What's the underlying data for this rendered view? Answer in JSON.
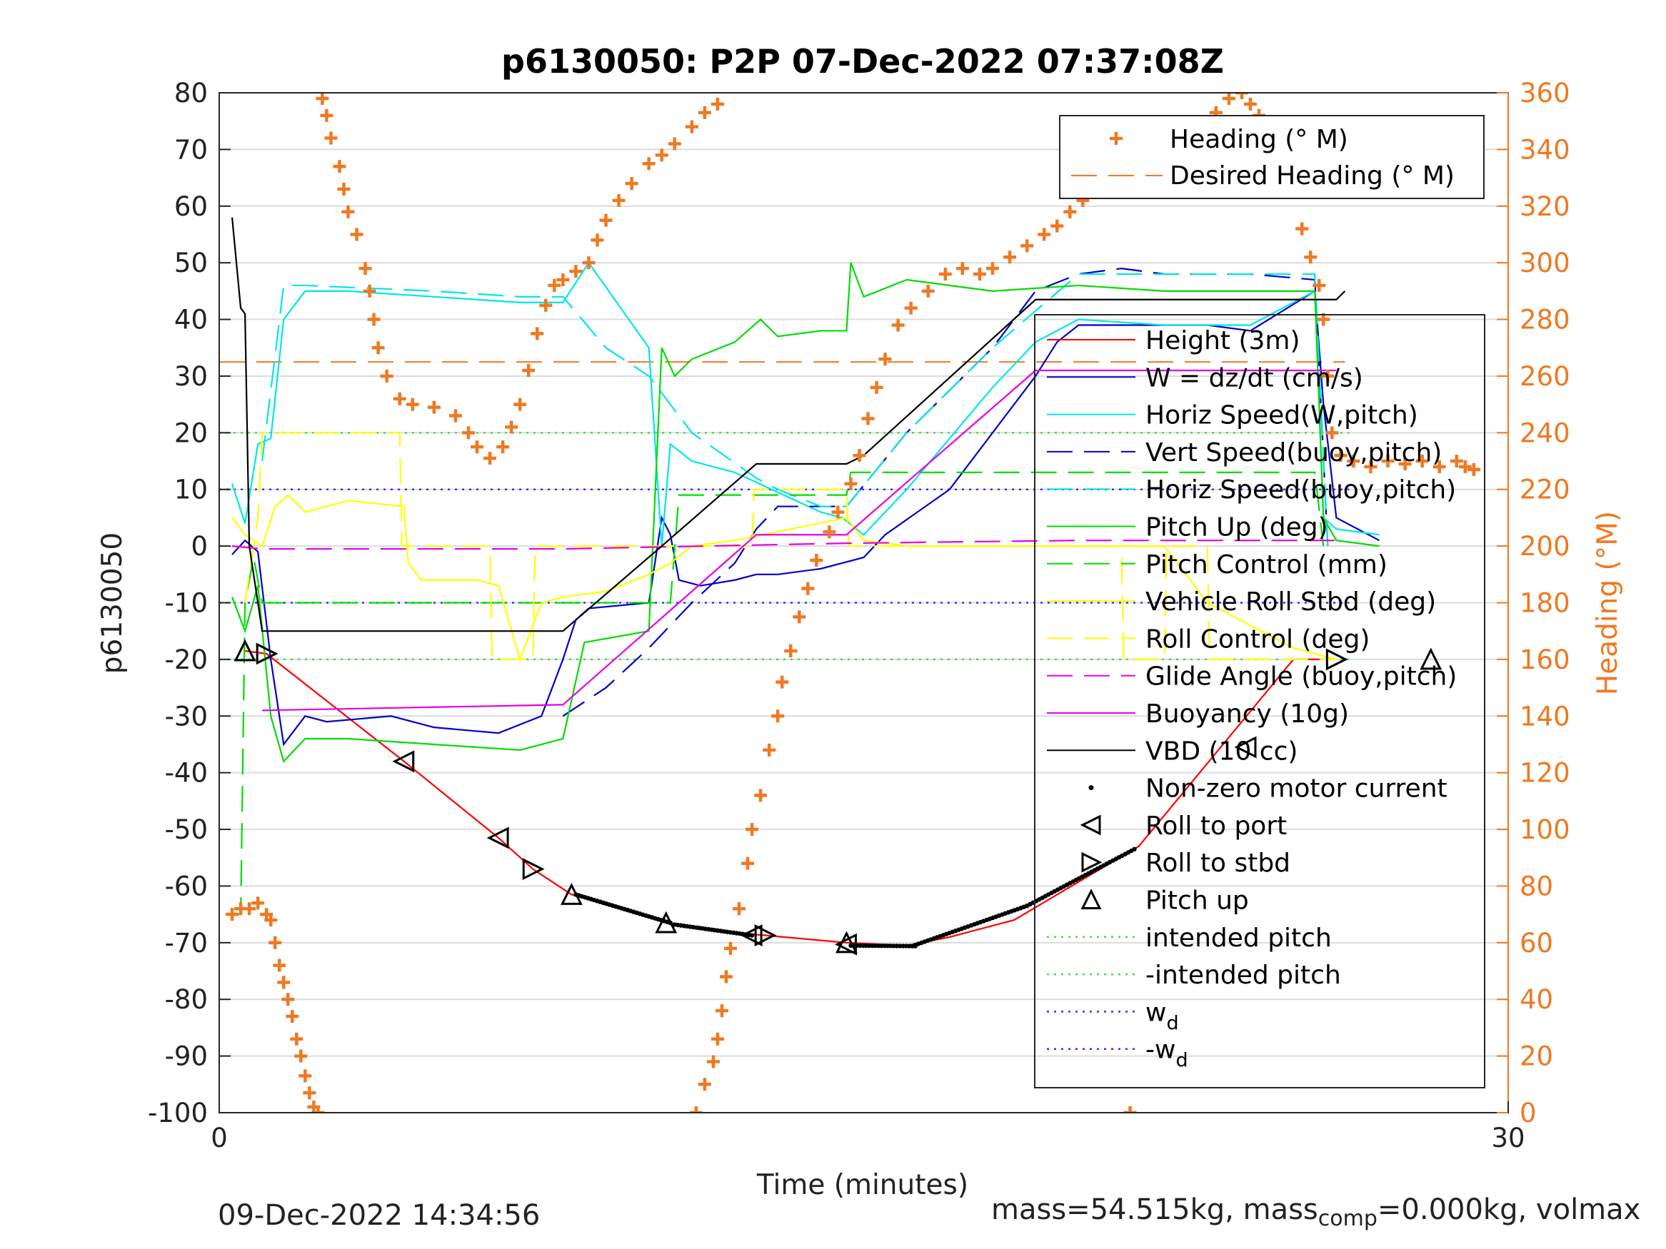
{
  "chart_data": {
    "type": "line",
    "title": "p6130050: P2P 07-Dec-2022 07:37:08Z",
    "xlabel": "Time (minutes)",
    "ylabel": "p6130050",
    "y2label": "Heading (°M)",
    "xlim": [
      0,
      30
    ],
    "ylim": [
      -100,
      80
    ],
    "y2lim": [
      0,
      360
    ],
    "xticks": [
      "0",
      "30"
    ],
    "yticks": [
      "80",
      "70",
      "60",
      "50",
      "40",
      "30",
      "20",
      "10",
      "0",
      "-10",
      "-20",
      "-30",
      "-40",
      "-50",
      "-60",
      "-70",
      "-80",
      "-90",
      "-100"
    ],
    "y2ticks": [
      "360",
      "340",
      "320",
      "300",
      "280",
      "260",
      "240",
      "220",
      "200",
      "180",
      "160",
      "140",
      "120",
      "100",
      "80",
      "60",
      "40",
      "20",
      "0"
    ],
    "grid": true,
    "colors": {
      "height": "#ff0000",
      "w": "#0000c8",
      "horiz_speed": "#00e6e6",
      "pitch": "#00dd00",
      "roll": "#ffff00",
      "glide": "#e600e6",
      "buoyancy": "#e600e6",
      "vbd": "#000000",
      "heading": "#f07820",
      "intended": "#44dd44",
      "wd": "#3333ff"
    },
    "series": [
      {
        "name": "Height (3m)",
        "style": "solid",
        "color": "#ff0000",
        "x": [
          0.6,
          1.1,
          4.3,
          6.5,
          7.3,
          8.2,
          10.4,
          12.4,
          12.7,
          14.6,
          16.0,
          17.0,
          18.5,
          21.4,
          25.0,
          26.0
        ],
        "y": [
          -18.5,
          -19,
          -38,
          -51.5,
          -57,
          -61.5,
          -66.5,
          -68.5,
          -68.7,
          -70,
          -70.5,
          -69,
          -66,
          -53,
          -20,
          -20
        ]
      },
      {
        "name": "W = dz/dt (cm/s)",
        "style": "solid",
        "color": "#0000c8",
        "x": [
          0.3,
          0.6,
          0.9,
          1.2,
          1.5,
          2.0,
          2.5,
          4.0,
          5.0,
          6.5,
          7.5,
          8.0,
          8.3,
          8.6,
          10.0,
          10.3,
          10.5,
          10.7,
          11.2,
          12.0,
          12.5,
          13.0,
          14.0,
          14.5,
          15.0,
          15.5,
          17.0,
          18.0,
          19.0,
          19.5,
          20.0,
          21.0,
          22.0,
          23.0,
          24.0,
          25.5,
          25.7,
          26.0,
          27.0
        ],
        "y": [
          -1.5,
          1,
          -1,
          -20,
          -35,
          -30,
          -31,
          -30,
          -32,
          -33,
          -30,
          -20,
          -13,
          -11,
          -10,
          5,
          2,
          -6,
          -7,
          -6,
          -5,
          -5,
          -4,
          -3,
          -2,
          2,
          10,
          20,
          30,
          36,
          39,
          39,
          39,
          39,
          38,
          45,
          25,
          5,
          1
        ]
      },
      {
        "name": "Horiz Speed(W,pitch)",
        "style": "solid",
        "color": "#00e6e6",
        "x": [
          0.3,
          0.6,
          0.9,
          1.2,
          1.5,
          2.0,
          3.0,
          5.0,
          7.0,
          8.0,
          8.6,
          10.0,
          10.3,
          10.5,
          11.0,
          12.0,
          14.0,
          14.5,
          15.0,
          16.0,
          18.0,
          19.0,
          20.0,
          22.0,
          24.0,
          25.5,
          25.7,
          26.0,
          27.0
        ],
        "y": [
          11,
          4,
          18,
          19,
          40,
          45,
          45,
          44,
          43,
          43,
          50,
          35,
          0,
          18,
          15,
          13,
          6,
          5,
          2,
          10,
          28,
          36,
          40,
          39,
          39,
          45,
          5,
          3,
          2
        ]
      },
      {
        "name": "Vert Speed(buoy,pitch)",
        "style": "dash",
        "color": "#0000c8",
        "x": [
          8.0,
          9.0,
          10.0,
          11.0,
          12.0,
          12.5,
          13.0,
          14.0,
          14.6,
          16.0,
          18.0,
          19.0,
          20.0,
          21.0,
          22.0,
          24.0,
          25.5,
          25.8
        ],
        "y": [
          -30,
          -25,
          -18,
          -10,
          -3,
          3,
          7,
          7,
          7,
          20,
          35,
          45,
          48,
          49,
          48,
          48,
          47,
          0
        ]
      },
      {
        "name": "Horiz Speed(buoy,pitch)",
        "style": "dash",
        "color": "#00e6e6",
        "x": [
          1.0,
          1.5,
          2.0,
          5.0,
          7.0,
          8.0,
          9.0,
          10.0,
          11.0,
          12.5,
          13.0,
          14.0,
          14.6,
          16.0,
          18.0,
          20.0,
          22.0,
          24.0,
          25.5,
          25.8
        ],
        "y": [
          15,
          46,
          46,
          45,
          44,
          44,
          35,
          30,
          20,
          12,
          10,
          7,
          7,
          20,
          35,
          48,
          48,
          48,
          48,
          0
        ]
      },
      {
        "name": "Pitch Up (deg)",
        "style": "solid",
        "color": "#00dd00",
        "x": [
          0.3,
          0.6,
          0.9,
          1.2,
          1.5,
          2.0,
          3.0,
          5.0,
          7.0,
          8.0,
          8.5,
          10.0,
          10.3,
          10.6,
          11.0,
          12.0,
          12.6,
          13.0,
          14.0,
          14.6,
          14.7,
          15.0,
          16.0,
          18.0,
          20.0,
          22.0,
          24.0,
          25.5,
          25.7,
          26.0,
          27.0
        ],
        "y": [
          -9,
          -15,
          -7,
          -30,
          -38,
          -34,
          -34,
          -35,
          -36,
          -34,
          -17,
          -15,
          35,
          30,
          33,
          36,
          40,
          37,
          38,
          38,
          50,
          44,
          47,
          45,
          46,
          45,
          45,
          45,
          5,
          1,
          0
        ]
      },
      {
        "name": "Pitch Control (mm)",
        "style": "dash",
        "color": "#00dd00",
        "x": [
          0.3,
          0.5,
          0.6,
          0.8,
          1.0,
          1.5,
          8.0,
          10.5,
          10.7,
          14.0,
          14.6,
          14.7,
          25.5,
          25.7
        ],
        "y": [
          -65,
          -65,
          -10,
          -2,
          -10,
          -10,
          -10,
          -10,
          9,
          9,
          9,
          13,
          13,
          0
        ]
      },
      {
        "name": "Vehicle Roll Stbd (deg)",
        "style": "solid",
        "color": "#ffff00",
        "x": [
          0.3,
          0.6,
          1.0,
          1.3,
          1.6,
          2.0,
          3.0,
          4.3,
          4.4,
          4.7,
          5.0,
          6.0,
          6.5,
          7.0,
          7.5,
          8.0,
          9.0,
          10.0,
          10.5,
          11.0,
          12.0,
          14.6,
          15.0,
          16.0,
          20.0,
          22.0,
          23.0,
          25.0,
          26.0
        ],
        "y": [
          5,
          2,
          0,
          7,
          9,
          6,
          8,
          7,
          -3,
          -6,
          -6,
          -6,
          -7,
          -20,
          -10,
          -9,
          -8,
          -5,
          -3,
          0,
          1,
          5,
          1,
          0,
          0,
          0,
          -10,
          -18,
          -20
        ]
      },
      {
        "name": "Roll Control (deg)",
        "style": "dash",
        "color": "#ffff00",
        "x": [
          0.6,
          0.9,
          1.0,
          4.2,
          4.25,
          6.3,
          6.35,
          7.3,
          7.35,
          12.4,
          12.45,
          14.6,
          14.65,
          21.0,
          21.05,
          22.0,
          22.05,
          23.0,
          23.05,
          26.0
        ],
        "y": [
          -10,
          5,
          20,
          20,
          0,
          0,
          -20,
          -20,
          0,
          0,
          10,
          10,
          0,
          0,
          -20,
          -20,
          0,
          0,
          -20,
          -20
        ]
      },
      {
        "name": "Glide Angle (buoy,pitch)",
        "style": "dash",
        "color": "#e600e6",
        "x": [
          0.3,
          1.0,
          8.0,
          14.6,
          20.0,
          26.0
        ],
        "y": [
          0,
          -0.5,
          -0.5,
          0.5,
          1,
          1
        ]
      },
      {
        "name": "Buoyancy (10g)",
        "style": "solid",
        "color": "#e600e6",
        "x": [
          1.0,
          8.0,
          12.5,
          14.6,
          19.0,
          26.0
        ],
        "y": [
          -29,
          -28,
          2,
          2,
          31,
          31
        ]
      },
      {
        "name": "VBD (10 cc)",
        "style": "solid",
        "color": "#000000",
        "x": [
          0.3,
          0.5,
          0.6,
          0.7,
          1.0,
          1.2,
          8.0,
          10.3,
          12.5,
          14.6,
          15.0,
          19.0,
          26.0,
          26.2
        ],
        "y": [
          58,
          42,
          41,
          0,
          -15,
          -15,
          -15,
          0,
          14.5,
          14.5,
          16,
          43.5,
          43.5,
          45
        ]
      }
    ],
    "heading": {
      "name": "Heading (° M)",
      "axis": "right",
      "color": "#f07820",
      "marker": "+",
      "points": [
        [
          0.3,
          70
        ],
        [
          0.5,
          72
        ],
        [
          0.7,
          72
        ],
        [
          0.9,
          74
        ],
        [
          1.1,
          70
        ],
        [
          1.2,
          68
        ],
        [
          1.3,
          60
        ],
        [
          1.4,
          52
        ],
        [
          1.5,
          46
        ],
        [
          1.6,
          40
        ],
        [
          1.7,
          34
        ],
        [
          1.8,
          26
        ],
        [
          1.9,
          20
        ],
        [
          2.0,
          13
        ],
        [
          2.1,
          7
        ],
        [
          2.2,
          2
        ],
        [
          2.3,
          0
        ],
        [
          2.4,
          358
        ],
        [
          2.5,
          352
        ],
        [
          2.6,
          344
        ],
        [
          2.8,
          334
        ],
        [
          2.9,
          326
        ],
        [
          3.0,
          318
        ],
        [
          3.2,
          310
        ],
        [
          3.4,
          298
        ],
        [
          3.5,
          290
        ],
        [
          3.6,
          280
        ],
        [
          3.7,
          270
        ],
        [
          3.9,
          260
        ],
        [
          4.2,
          252
        ],
        [
          4.5,
          250
        ],
        [
          5.0,
          249
        ],
        [
          5.5,
          246
        ],
        [
          5.8,
          240
        ],
        [
          6.0,
          235
        ],
        [
          6.3,
          231
        ],
        [
          6.6,
          235
        ],
        [
          6.8,
          242
        ],
        [
          7.0,
          250
        ],
        [
          7.2,
          262
        ],
        [
          7.4,
          275
        ],
        [
          7.6,
          285
        ],
        [
          7.8,
          292
        ],
        [
          8.0,
          294
        ],
        [
          8.3,
          297
        ],
        [
          8.6,
          300
        ],
        [
          8.8,
          308
        ],
        [
          9.0,
          315
        ],
        [
          9.3,
          322
        ],
        [
          9.6,
          328
        ],
        [
          10.0,
          335
        ],
        [
          10.3,
          338
        ],
        [
          10.6,
          342
        ],
        [
          11.0,
          348
        ],
        [
          11.3,
          353
        ],
        [
          11.6,
          356
        ],
        [
          11.1,
          0
        ],
        [
          11.3,
          10
        ],
        [
          11.5,
          18
        ],
        [
          11.6,
          26
        ],
        [
          11.7,
          36
        ],
        [
          11.8,
          48
        ],
        [
          11.9,
          58
        ],
        [
          12.1,
          72
        ],
        [
          12.3,
          88
        ],
        [
          12.4,
          100
        ],
        [
          12.6,
          112
        ],
        [
          12.8,
          128
        ],
        [
          13.0,
          140
        ],
        [
          13.1,
          152
        ],
        [
          13.3,
          163
        ],
        [
          13.5,
          175
        ],
        [
          13.7,
          185
        ],
        [
          13.9,
          195
        ],
        [
          14.2,
          205
        ],
        [
          14.4,
          212
        ],
        [
          14.7,
          222
        ],
        [
          14.9,
          232
        ],
        [
          15.1,
          245
        ],
        [
          15.3,
          256
        ],
        [
          15.5,
          266
        ],
        [
          15.8,
          278
        ],
        [
          16.1,
          284
        ],
        [
          16.5,
          290
        ],
        [
          16.9,
          296
        ],
        [
          17.3,
          298
        ],
        [
          17.7,
          296
        ],
        [
          18.0,
          298
        ],
        [
          18.4,
          302
        ],
        [
          18.8,
          306
        ],
        [
          19.2,
          310
        ],
        [
          19.5,
          313
        ],
        [
          19.8,
          318
        ],
        [
          20.1,
          322
        ],
        [
          20.4,
          327
        ],
        [
          20.8,
          334
        ],
        [
          21.2,
          339
        ],
        [
          21.6,
          343
        ],
        [
          22.0,
          345
        ],
        [
          22.4,
          343
        ],
        [
          22.8,
          347
        ],
        [
          23.2,
          353
        ],
        [
          23.5,
          358
        ],
        [
          23.8,
          360
        ],
        [
          24.0,
          356
        ],
        [
          24.2,
          352
        ],
        [
          24.5,
          344
        ],
        [
          24.8,
          334
        ],
        [
          25.0,
          325
        ],
        [
          25.2,
          312
        ],
        [
          25.4,
          302
        ],
        [
          25.6,
          292
        ],
        [
          25.7,
          280
        ],
        [
          25.8,
          260
        ],
        [
          25.9,
          240
        ],
        [
          26.1,
          232
        ],
        [
          26.4,
          230
        ],
        [
          26.8,
          228
        ],
        [
          27.2,
          230
        ],
        [
          27.6,
          229
        ],
        [
          28.0,
          230
        ],
        [
          28.4,
          228
        ],
        [
          28.8,
          230
        ],
        [
          29.0,
          228
        ],
        [
          29.2,
          227
        ],
        [
          21.2,
          0
        ]
      ]
    },
    "desired_heading": {
      "name": "Desired Heading (° M)",
      "axis": "right",
      "color": "#f07820",
      "value": 265
    },
    "reference_lines": [
      {
        "name": "intended pitch",
        "value": 20,
        "color": "#44dd44"
      },
      {
        "name": "-intended pitch",
        "value": -20,
        "color": "#44dd44"
      },
      {
        "name": "w_d",
        "value": 10,
        "color": "#3333ff"
      },
      {
        "name": "-w_d",
        "value": -10,
        "color": "#3333ff"
      }
    ],
    "motor_current": {
      "name": "Non-zero motor current",
      "segments": [
        [
          8.3,
          10.5,
          -61.5,
          -66.5
        ],
        [
          10.6,
          12.4,
          -66.8,
          -68.7
        ],
        [
          14.7,
          16.2,
          -70.5,
          -70.6
        ],
        [
          16.2,
          18.8,
          -70.4,
          -63.5
        ],
        [
          18.8,
          21.3,
          -63.5,
          -53.5
        ]
      ]
    },
    "markers": {
      "roll_port": {
        "name": "Roll to port",
        "points": [
          [
            4.3,
            -38
          ],
          [
            6.5,
            -51.5
          ],
          [
            12.4,
            -68.7
          ],
          [
            14.6,
            -70.3
          ],
          [
            23.9,
            -35.5
          ]
        ]
      },
      "roll_stbd": {
        "name": "Roll to stbd",
        "points": [
          [
            1.1,
            -19
          ],
          [
            7.3,
            -57
          ],
          [
            12.7,
            -68.7
          ],
          [
            26.0,
            -20
          ]
        ]
      },
      "pitch_up": {
        "name": "Pitch up",
        "points": [
          [
            0.6,
            -18.5
          ],
          [
            8.2,
            -61.5
          ],
          [
            10.4,
            -66.5
          ],
          [
            14.6,
            -70
          ],
          [
            28.2,
            -20
          ]
        ]
      }
    },
    "legend_top": {
      "placement": "top-right",
      "entries": [
        "Heading (° M)",
        "Desired Heading (° M)"
      ]
    },
    "legend_main": {
      "placement": "right",
      "entries": [
        "Height (3m)",
        "W = dz/dt (cm/s)",
        "Horiz Speed(W,pitch)",
        "Vert Speed(buoy,pitch)",
        "Horiz Speed(buoy,pitch)",
        "Pitch Up (deg)",
        "Pitch Control (mm)",
        "Vehicle Roll Stbd (deg)",
        "Roll Control (deg)",
        "Glide Angle (buoy,pitch)",
        "Buoyancy (10g)",
        "VBD (10 cc)",
        "Non-zero motor current",
        "Roll to port",
        "Roll to stbd",
        "Pitch up",
        "intended pitch",
        "-intended pitch",
        "w",
        "-w"
      ]
    },
    "wd_subscript": "d"
  },
  "footer": {
    "timestamp": "09-Dec-2022 14:34:56",
    "mass_text": "mass=54.515kg, mass",
    "mass_sub": "comp",
    "mass_rest": "=0.000kg, volmax"
  }
}
